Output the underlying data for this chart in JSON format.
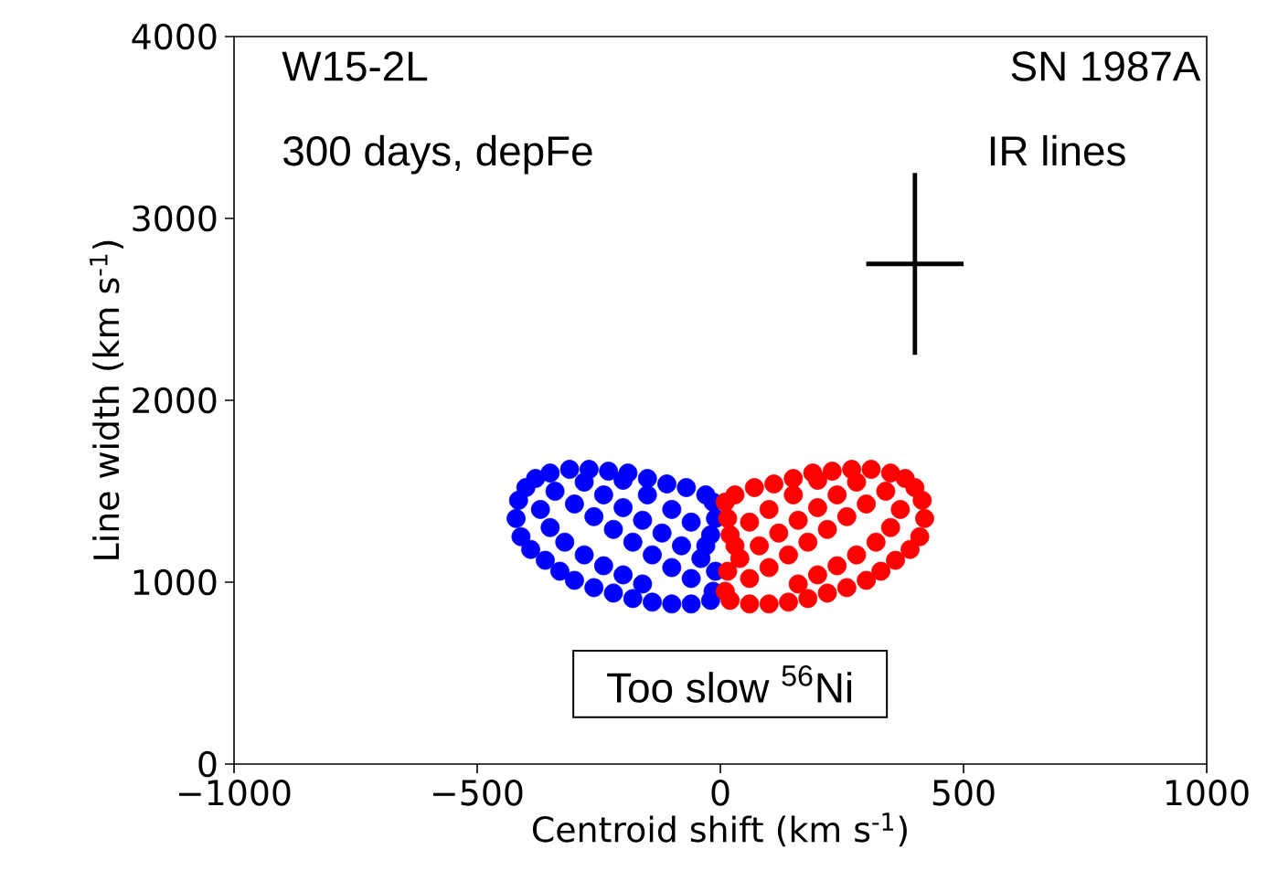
{
  "chart_data": {
    "type": "scatter",
    "xlabel": "Centroid shift (km s$^{-1}$)",
    "ylabel": "Line width (km s$^{-1}$)",
    "xlim": [
      -1000,
      1000
    ],
    "ylim": [
      0,
      4000
    ],
    "xticks": [
      {
        "value": -1000,
        "label": "−1000"
      },
      {
        "value": -500,
        "label": "−500"
      },
      0,
      500,
      1000
    ],
    "yticks": [
      0,
      1000,
      2000,
      3000,
      4000
    ],
    "marker": "circle",
    "annotations": [
      "W15-2L",
      "300 days, depFe",
      "SN 1987A",
      "IR lines",
      "Too slow $^{56}$Ni"
    ],
    "series": [
      {
        "color": "#0000ff",
        "x": [
          -420,
          -415,
          -400,
          -380,
          -350,
          -310,
          -270,
          -230,
          -190,
          -150,
          -110,
          -70,
          -30,
          -15,
          -410,
          -390,
          -360,
          -330,
          -300,
          -260,
          -220,
          -180,
          -140,
          -100,
          -60,
          -20,
          -15,
          -340,
          -300,
          -260,
          -220,
          -180,
          -140,
          -100,
          -60,
          -280,
          -240,
          -200,
          -160,
          -120,
          -80,
          -40,
          -10,
          -370,
          -350,
          -320,
          -280,
          -240,
          -200,
          -160,
          -200,
          -150,
          -100,
          -60,
          -20,
          -10,
          -30
        ],
        "values": [
          1350,
          1450,
          1520,
          1570,
          1600,
          1620,
          1620,
          1610,
          1600,
          1570,
          1540,
          1520,
          1480,
          1440,
          1250,
          1180,
          1120,
          1060,
          1010,
          970,
          940,
          910,
          890,
          880,
          880,
          900,
          950,
          1500,
          1430,
          1360,
          1290,
          1220,
          1150,
          1080,
          1020,
          1550,
          1480,
          1410,
          1340,
          1270,
          1200,
          1130,
          1060,
          1400,
          1300,
          1220,
          1150,
          1090,
          1040,
          990,
          1560,
          1480,
          1400,
          1330,
          1260,
          1350,
          1200
        ]
      },
      {
        "color": "#ff0000",
        "x": [
          420,
          415,
          400,
          380,
          350,
          310,
          270,
          230,
          190,
          150,
          110,
          70,
          30,
          10,
          410,
          390,
          360,
          330,
          300,
          260,
          220,
          180,
          140,
          100,
          60,
          20,
          10,
          340,
          300,
          260,
          220,
          180,
          140,
          100,
          60,
          280,
          240,
          200,
          160,
          120,
          80,
          40,
          15,
          370,
          350,
          320,
          280,
          240,
          200,
          160,
          200,
          150,
          100,
          60,
          20,
          15,
          30
        ],
        "values": [
          1350,
          1450,
          1520,
          1570,
          1600,
          1620,
          1620,
          1610,
          1600,
          1570,
          1540,
          1520,
          1480,
          1440,
          1250,
          1180,
          1120,
          1060,
          1010,
          970,
          940,
          910,
          890,
          880,
          880,
          900,
          950,
          1500,
          1430,
          1360,
          1290,
          1220,
          1150,
          1080,
          1020,
          1550,
          1480,
          1410,
          1340,
          1270,
          1200,
          1130,
          1060,
          1400,
          1300,
          1220,
          1150,
          1090,
          1040,
          990,
          1560,
          1480,
          1400,
          1330,
          1260,
          1350,
          1200
        ]
      },
      {
        "color": "#000000",
        "x": [
          400
        ],
        "values": [
          2750
        ],
        "errors": [
          500
        ],
        "xerrors": [
          100
        ]
      }
    ]
  }
}
